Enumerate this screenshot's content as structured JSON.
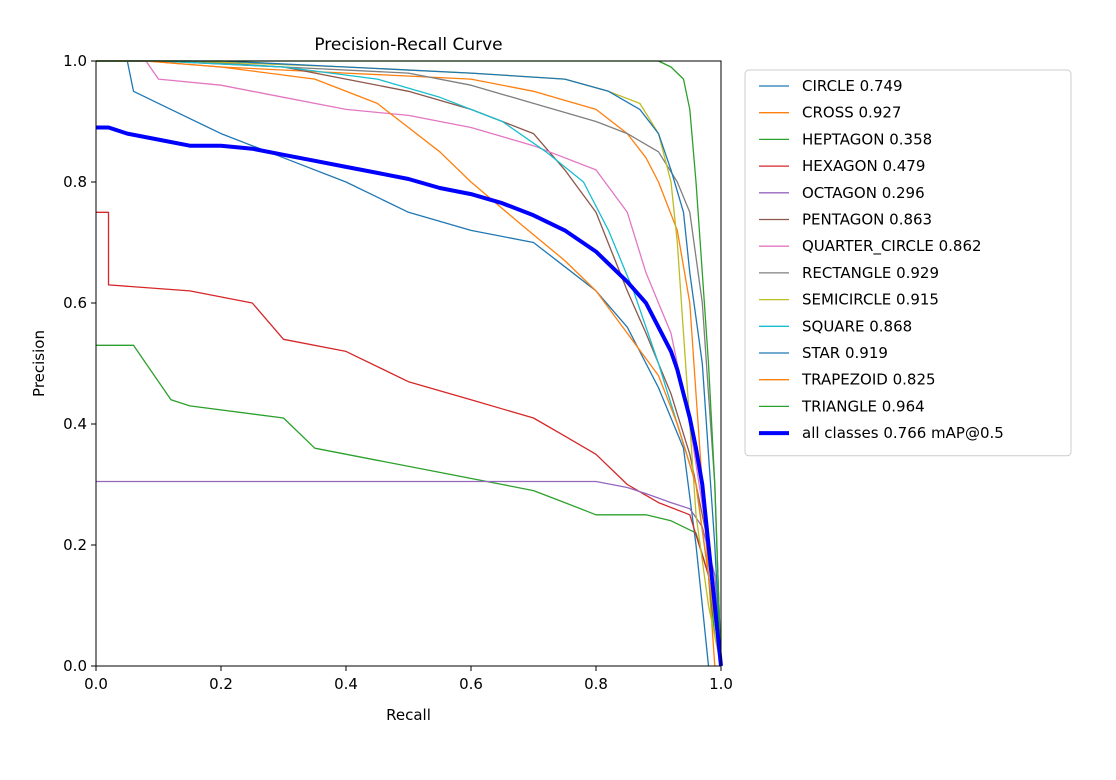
{
  "chart_data": {
    "type": "line",
    "title": "Precision-Recall Curve",
    "xlabel": "Recall",
    "ylabel": "Precision",
    "xlim": [
      0,
      1
    ],
    "ylim": [
      0,
      1
    ],
    "xticks": [
      "0.0",
      "0.2",
      "0.4",
      "0.6",
      "0.8",
      "1.0"
    ],
    "yticks": [
      "0.0",
      "0.2",
      "0.4",
      "0.6",
      "0.8",
      "1.0"
    ],
    "grid": false,
    "legend_position": "outside-right",
    "series": [
      {
        "name": "CIRCLE 0.749",
        "color": "#1f77b4",
        "width": 1.3,
        "points": [
          [
            0,
            1.0
          ],
          [
            0.05,
            1.0
          ],
          [
            0.06,
            0.95
          ],
          [
            0.1,
            0.93
          ],
          [
            0.2,
            0.88
          ],
          [
            0.3,
            0.84
          ],
          [
            0.4,
            0.8
          ],
          [
            0.5,
            0.75
          ],
          [
            0.6,
            0.72
          ],
          [
            0.7,
            0.7
          ],
          [
            0.75,
            0.66
          ],
          [
            0.8,
            0.62
          ],
          [
            0.85,
            0.56
          ],
          [
            0.9,
            0.46
          ],
          [
            0.94,
            0.36
          ],
          [
            0.96,
            0.2
          ],
          [
            0.97,
            0.1
          ],
          [
            0.98,
            0.0
          ]
        ]
      },
      {
        "name": "CROSS 0.927",
        "color": "#ff7f0e",
        "width": 1.3,
        "points": [
          [
            0,
            1.0
          ],
          [
            0.08,
            1.0
          ],
          [
            0.2,
            0.99
          ],
          [
            0.4,
            0.98
          ],
          [
            0.6,
            0.97
          ],
          [
            0.7,
            0.95
          ],
          [
            0.8,
            0.92
          ],
          [
            0.85,
            0.88
          ],
          [
            0.88,
            0.84
          ],
          [
            0.9,
            0.8
          ],
          [
            0.93,
            0.72
          ],
          [
            0.95,
            0.6
          ],
          [
            0.96,
            0.45
          ],
          [
            0.97,
            0.3
          ],
          [
            0.98,
            0.15
          ],
          [
            0.99,
            0.0
          ]
        ]
      },
      {
        "name": "HEPTAGON 0.358",
        "color": "#2ca02c",
        "width": 1.3,
        "points": [
          [
            0,
            0.53
          ],
          [
            0.06,
            0.53
          ],
          [
            0.08,
            0.5
          ],
          [
            0.12,
            0.44
          ],
          [
            0.15,
            0.43
          ],
          [
            0.3,
            0.41
          ],
          [
            0.35,
            0.36
          ],
          [
            0.45,
            0.34
          ],
          [
            0.55,
            0.32
          ],
          [
            0.65,
            0.3
          ],
          [
            0.7,
            0.29
          ],
          [
            0.75,
            0.27
          ],
          [
            0.8,
            0.25
          ],
          [
            0.88,
            0.25
          ],
          [
            0.92,
            0.24
          ],
          [
            0.96,
            0.22
          ],
          [
            0.98,
            0.15
          ],
          [
            0.99,
            0.05
          ],
          [
            1.0,
            0.0
          ]
        ]
      },
      {
        "name": "HEXAGON 0.479",
        "color": "#d62728",
        "width": 1.3,
        "points": [
          [
            0,
            0.75
          ],
          [
            0.02,
            0.75
          ],
          [
            0.02,
            0.63
          ],
          [
            0.15,
            0.62
          ],
          [
            0.25,
            0.6
          ],
          [
            0.3,
            0.54
          ],
          [
            0.4,
            0.52
          ],
          [
            0.5,
            0.47
          ],
          [
            0.6,
            0.44
          ],
          [
            0.7,
            0.41
          ],
          [
            0.75,
            0.38
          ],
          [
            0.8,
            0.35
          ],
          [
            0.85,
            0.3
          ],
          [
            0.9,
            0.27
          ],
          [
            0.95,
            0.25
          ],
          [
            0.98,
            0.15
          ],
          [
            1.0,
            0.0
          ]
        ]
      },
      {
        "name": "OCTAGON 0.296",
        "color": "#9467bd",
        "width": 1.3,
        "points": [
          [
            0,
            0.305
          ],
          [
            0.5,
            0.305
          ],
          [
            0.8,
            0.305
          ],
          [
            0.85,
            0.295
          ],
          [
            0.88,
            0.285
          ],
          [
            0.92,
            0.27
          ],
          [
            0.95,
            0.26
          ],
          [
            0.97,
            0.23
          ],
          [
            0.99,
            0.15
          ],
          [
            1.0,
            0.0
          ]
        ]
      },
      {
        "name": "PENTAGON 0.863",
        "color": "#8c564b",
        "width": 1.3,
        "points": [
          [
            0,
            1.0
          ],
          [
            0.1,
            1.0
          ],
          [
            0.3,
            0.99
          ],
          [
            0.4,
            0.97
          ],
          [
            0.5,
            0.95
          ],
          [
            0.6,
            0.92
          ],
          [
            0.7,
            0.88
          ],
          [
            0.75,
            0.82
          ],
          [
            0.8,
            0.75
          ],
          [
            0.85,
            0.62
          ],
          [
            0.88,
            0.55
          ],
          [
            0.92,
            0.45
          ],
          [
            0.95,
            0.35
          ],
          [
            0.98,
            0.2
          ],
          [
            1.0,
            0.0
          ]
        ]
      },
      {
        "name": "QUARTER_CIRCLE 0.862",
        "color": "#e377c2",
        "width": 1.3,
        "points": [
          [
            0,
            1.0
          ],
          [
            0.08,
            1.0
          ],
          [
            0.1,
            0.97
          ],
          [
            0.2,
            0.96
          ],
          [
            0.3,
            0.94
          ],
          [
            0.4,
            0.92
          ],
          [
            0.5,
            0.91
          ],
          [
            0.6,
            0.89
          ],
          [
            0.7,
            0.86
          ],
          [
            0.8,
            0.82
          ],
          [
            0.85,
            0.75
          ],
          [
            0.88,
            0.65
          ],
          [
            0.92,
            0.55
          ],
          [
            0.95,
            0.4
          ],
          [
            0.98,
            0.2
          ],
          [
            1.0,
            0.0
          ]
        ]
      },
      {
        "name": "RECTANGLE 0.929",
        "color": "#7f7f7f",
        "width": 1.3,
        "points": [
          [
            0,
            1.0
          ],
          [
            0.15,
            1.0
          ],
          [
            0.3,
            0.99
          ],
          [
            0.5,
            0.98
          ],
          [
            0.6,
            0.96
          ],
          [
            0.7,
            0.93
          ],
          [
            0.8,
            0.9
          ],
          [
            0.85,
            0.88
          ],
          [
            0.9,
            0.85
          ],
          [
            0.93,
            0.8
          ],
          [
            0.95,
            0.75
          ],
          [
            0.97,
            0.6
          ],
          [
            0.98,
            0.45
          ],
          [
            0.99,
            0.3
          ],
          [
            1.0,
            0.0
          ]
        ]
      },
      {
        "name": "SEMICIRCLE 0.915",
        "color": "#bcbd22",
        "width": 1.3,
        "points": [
          [
            0,
            1.0
          ],
          [
            0.15,
            1.0
          ],
          [
            0.4,
            0.99
          ],
          [
            0.6,
            0.98
          ],
          [
            0.75,
            0.97
          ],
          [
            0.82,
            0.95
          ],
          [
            0.87,
            0.93
          ],
          [
            0.9,
            0.88
          ],
          [
            0.92,
            0.8
          ],
          [
            0.93,
            0.7
          ],
          [
            0.94,
            0.55
          ],
          [
            0.95,
            0.4
          ],
          [
            0.96,
            0.25
          ],
          [
            0.98,
            0.1
          ],
          [
            1.0,
            0.0
          ]
        ]
      },
      {
        "name": "SQUARE 0.868",
        "color": "#17becf",
        "width": 1.3,
        "points": [
          [
            0,
            1.0
          ],
          [
            0.1,
            1.0
          ],
          [
            0.3,
            0.99
          ],
          [
            0.45,
            0.97
          ],
          [
            0.55,
            0.94
          ],
          [
            0.65,
            0.9
          ],
          [
            0.72,
            0.85
          ],
          [
            0.78,
            0.8
          ],
          [
            0.82,
            0.72
          ],
          [
            0.86,
            0.62
          ],
          [
            0.9,
            0.5
          ],
          [
            0.93,
            0.4
          ],
          [
            0.96,
            0.3
          ],
          [
            0.98,
            0.15
          ],
          [
            1.0,
            0.0
          ]
        ]
      },
      {
        "name": "STAR 0.919",
        "color": "#1f77b4",
        "width": 1.3,
        "points": [
          [
            0,
            1.0
          ],
          [
            0.2,
            1.0
          ],
          [
            0.4,
            0.99
          ],
          [
            0.6,
            0.98
          ],
          [
            0.75,
            0.97
          ],
          [
            0.82,
            0.95
          ],
          [
            0.87,
            0.92
          ],
          [
            0.9,
            0.88
          ],
          [
            0.92,
            0.82
          ],
          [
            0.94,
            0.75
          ],
          [
            0.95,
            0.65
          ],
          [
            0.97,
            0.5
          ],
          [
            0.98,
            0.35
          ],
          [
            0.99,
            0.2
          ],
          [
            1.0,
            0.0
          ]
        ]
      },
      {
        "name": "TRAPEZOID 0.825",
        "color": "#ff7f0e",
        "width": 1.3,
        "points": [
          [
            0,
            1.0
          ],
          [
            0.08,
            1.0
          ],
          [
            0.2,
            0.99
          ],
          [
            0.35,
            0.97
          ],
          [
            0.45,
            0.93
          ],
          [
            0.55,
            0.85
          ],
          [
            0.6,
            0.8
          ],
          [
            0.68,
            0.73
          ],
          [
            0.75,
            0.67
          ],
          [
            0.8,
            0.62
          ],
          [
            0.85,
            0.55
          ],
          [
            0.9,
            0.48
          ],
          [
            0.93,
            0.4
          ],
          [
            0.96,
            0.3
          ],
          [
            0.98,
            0.15
          ],
          [
            1.0,
            0.0
          ]
        ]
      },
      {
        "name": "TRIANGLE 0.964",
        "color": "#2ca02c",
        "width": 1.3,
        "points": [
          [
            0,
            1.0
          ],
          [
            0.5,
            1.0
          ],
          [
            0.8,
            1.0
          ],
          [
            0.9,
            1.0
          ],
          [
            0.92,
            0.99
          ],
          [
            0.94,
            0.97
          ],
          [
            0.95,
            0.92
          ],
          [
            0.96,
            0.8
          ],
          [
            0.97,
            0.65
          ],
          [
            0.98,
            0.5
          ],
          [
            0.99,
            0.3
          ],
          [
            1.0,
            0.0
          ]
        ]
      },
      {
        "name": "all classes 0.766 mAP@0.5",
        "color": "#0000ff",
        "width": 4,
        "points": [
          [
            0,
            0.89
          ],
          [
            0.02,
            0.89
          ],
          [
            0.05,
            0.88
          ],
          [
            0.1,
            0.87
          ],
          [
            0.15,
            0.86
          ],
          [
            0.2,
            0.86
          ],
          [
            0.25,
            0.855
          ],
          [
            0.3,
            0.845
          ],
          [
            0.35,
            0.835
          ],
          [
            0.4,
            0.825
          ],
          [
            0.45,
            0.815
          ],
          [
            0.5,
            0.805
          ],
          [
            0.55,
            0.79
          ],
          [
            0.6,
            0.78
          ],
          [
            0.65,
            0.765
          ],
          [
            0.7,
            0.745
          ],
          [
            0.75,
            0.72
          ],
          [
            0.8,
            0.685
          ],
          [
            0.85,
            0.635
          ],
          [
            0.88,
            0.6
          ],
          [
            0.9,
            0.56
          ],
          [
            0.92,
            0.52
          ],
          [
            0.93,
            0.49
          ],
          [
            0.94,
            0.45
          ],
          [
            0.95,
            0.41
          ],
          [
            0.96,
            0.36
          ],
          [
            0.97,
            0.3
          ],
          [
            0.98,
            0.2
          ],
          [
            0.99,
            0.1
          ],
          [
            1.0,
            0.0
          ]
        ]
      }
    ]
  }
}
